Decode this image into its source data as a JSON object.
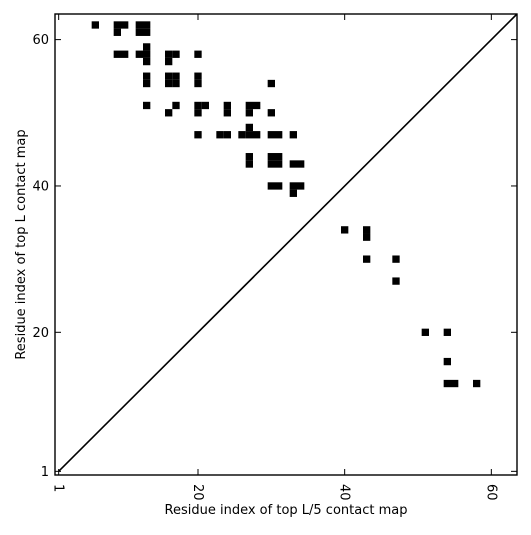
{
  "chart_data": {
    "type": "heatmap",
    "title": "",
    "xlabel": "Residue index of top L/5 contact map",
    "ylabel": "Residue index of top L contact map",
    "xlim": [
      0.5,
      63.5
    ],
    "ylim": [
      0.5,
      63.5
    ],
    "x_ticks": [
      1,
      20,
      40,
      60
    ],
    "y_ticks": [
      1,
      20,
      40,
      60
    ],
    "x_tick_labels": [
      "1",
      "20",
      "40",
      "60"
    ],
    "y_tick_labels": [
      "1",
      "20",
      "40",
      "60"
    ],
    "x_tick_rotation": -90,
    "diagonal": {
      "from": [
        1,
        1
      ],
      "to": [
        63,
        63
      ]
    },
    "cell_color": "#000000",
    "grid": false,
    "upper_triangle_cells": [
      [
        6,
        62
      ],
      [
        9,
        62
      ],
      [
        10,
        62
      ],
      [
        12,
        62
      ],
      [
        13,
        62
      ],
      [
        9,
        61
      ],
      [
        12,
        61
      ],
      [
        13,
        61
      ],
      [
        13,
        59
      ],
      [
        9,
        58
      ],
      [
        10,
        58
      ],
      [
        12,
        58
      ],
      [
        13,
        58
      ],
      [
        16,
        58
      ],
      [
        17,
        58
      ],
      [
        20,
        58
      ],
      [
        13,
        57
      ],
      [
        16,
        57
      ],
      [
        13,
        55
      ],
      [
        16,
        55
      ],
      [
        17,
        55
      ],
      [
        20,
        55
      ],
      [
        13,
        54
      ],
      [
        16,
        54
      ],
      [
        17,
        54
      ],
      [
        20,
        54
      ],
      [
        30,
        54
      ],
      [
        13,
        51
      ],
      [
        17,
        51
      ],
      [
        20,
        51
      ],
      [
        21,
        51
      ],
      [
        24,
        51
      ],
      [
        27,
        51
      ],
      [
        28,
        51
      ],
      [
        16,
        50
      ],
      [
        20,
        50
      ],
      [
        24,
        50
      ],
      [
        27,
        50
      ],
      [
        30,
        50
      ],
      [
        27,
        48
      ],
      [
        20,
        47
      ],
      [
        23,
        47
      ],
      [
        24,
        47
      ],
      [
        26,
        47
      ],
      [
        27,
        47
      ],
      [
        28,
        47
      ],
      [
        30,
        47
      ],
      [
        31,
        47
      ],
      [
        33,
        47
      ],
      [
        27,
        44
      ],
      [
        30,
        44
      ],
      [
        31,
        44
      ],
      [
        27,
        43
      ],
      [
        30,
        43
      ],
      [
        31,
        43
      ],
      [
        33,
        43
      ],
      [
        34,
        43
      ],
      [
        30,
        40
      ],
      [
        31,
        40
      ],
      [
        33,
        40
      ],
      [
        34,
        40
      ],
      [
        33,
        39
      ]
    ],
    "lower_triangle_cells": [
      [
        40,
        34
      ],
      [
        43,
        34
      ],
      [
        43,
        33
      ],
      [
        43,
        30
      ],
      [
        47,
        30
      ],
      [
        47,
        27
      ],
      [
        51,
        20
      ],
      [
        54,
        20
      ],
      [
        54,
        16
      ],
      [
        54,
        13
      ],
      [
        55,
        13
      ],
      [
        58,
        13
      ]
    ]
  }
}
